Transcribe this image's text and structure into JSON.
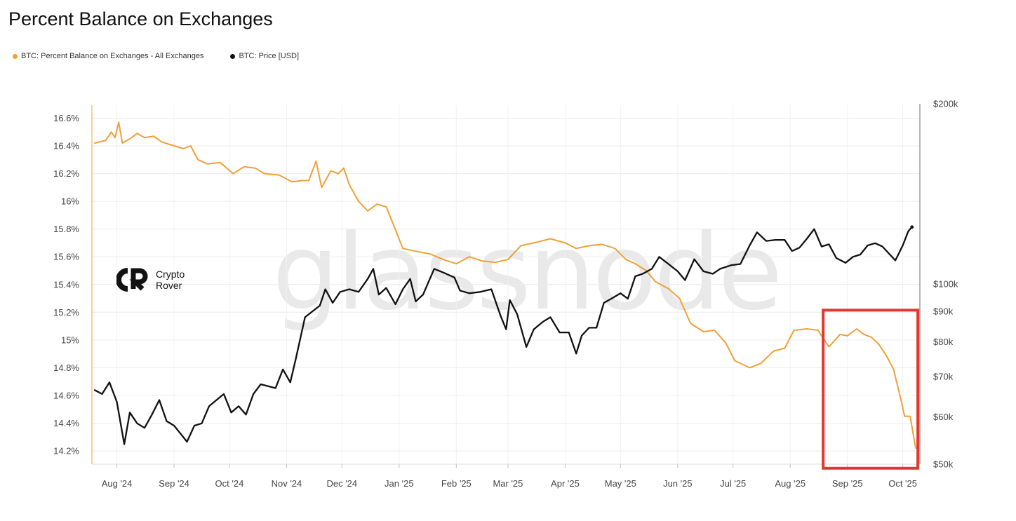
{
  "chart_data": {
    "type": "line",
    "title": "Percent Balance on Exchanges",
    "legend_position": "top-left",
    "grid": true,
    "colors": {
      "balance": "#f0a038",
      "price": "#111111",
      "highlight": "#e03a30"
    },
    "x_ticks": [
      "Aug '24",
      "Sep '24",
      "Oct '24",
      "Nov '24",
      "Dec '24",
      "Jan '25",
      "Feb '25",
      "Mar '25",
      "Apr '25",
      "May '25",
      "Jun '25",
      "Jul '25",
      "Aug '25",
      "Sep '25",
      "Oct '25"
    ],
    "y_left": {
      "ticks": [
        "16.6%",
        "16.4%",
        "16.2%",
        "16%",
        "15.8%",
        "15.6%",
        "15.4%",
        "15.2%",
        "15%",
        "14.8%",
        "14.6%",
        "14.4%",
        "14.2%"
      ],
      "range": [
        14.2,
        16.6
      ]
    },
    "y_right": {
      "ticks": [
        "$200k",
        "$100k",
        "$90k",
        "$80k",
        "$70k",
        "$60k",
        "$50k"
      ],
      "scale": "log",
      "range": [
        50000,
        200000
      ]
    },
    "highlight": {
      "x_range": [
        "2025-08-20",
        "2025-10-05"
      ],
      "y_range": [
        14.1,
        15.2
      ],
      "axis": "left"
    },
    "series": [
      {
        "name": "BTC: Percent Balance on Exchanges - All Exchanges",
        "axis": "left",
        "points": [
          [
            "2024-07-20",
            16.42
          ],
          [
            "2024-07-26",
            16.44
          ],
          [
            "2024-07-29",
            16.5
          ],
          [
            "2024-07-31",
            16.46
          ],
          [
            "2024-08-02",
            16.57
          ],
          [
            "2024-08-04",
            16.42
          ],
          [
            "2024-08-09",
            16.46
          ],
          [
            "2024-08-12",
            16.49
          ],
          [
            "2024-08-16",
            16.46
          ],
          [
            "2024-08-21",
            16.47
          ],
          [
            "2024-08-25",
            16.43
          ],
          [
            "2024-09-01",
            16.4
          ],
          [
            "2024-09-06",
            16.38
          ],
          [
            "2024-09-10",
            16.4
          ],
          [
            "2024-09-14",
            16.3
          ],
          [
            "2024-09-19",
            16.27
          ],
          [
            "2024-09-26",
            16.28
          ],
          [
            "2024-10-03",
            16.2
          ],
          [
            "2024-10-09",
            16.25
          ],
          [
            "2024-10-15",
            16.24
          ],
          [
            "2024-10-20",
            16.2
          ],
          [
            "2024-10-28",
            16.19
          ],
          [
            "2024-11-04",
            16.14
          ],
          [
            "2024-11-09",
            16.15
          ],
          [
            "2024-11-13",
            16.15
          ],
          [
            "2024-11-17",
            16.29
          ],
          [
            "2024-11-20",
            16.1
          ],
          [
            "2024-11-25",
            16.22
          ],
          [
            "2024-11-29",
            16.2
          ],
          [
            "2024-12-02",
            16.24
          ],
          [
            "2024-12-05",
            16.12
          ],
          [
            "2024-12-10",
            16.0
          ],
          [
            "2024-12-15",
            15.93
          ],
          [
            "2024-12-20",
            15.98
          ],
          [
            "2024-12-25",
            15.96
          ],
          [
            "2024-12-29",
            15.83
          ],
          [
            "2025-01-03",
            15.66
          ],
          [
            "2025-01-10",
            15.64
          ],
          [
            "2025-01-18",
            15.62
          ],
          [
            "2025-01-25",
            15.58
          ],
          [
            "2025-02-01",
            15.55
          ],
          [
            "2025-02-08",
            15.6
          ],
          [
            "2025-02-15",
            15.57
          ],
          [
            "2025-02-22",
            15.56
          ],
          [
            "2025-03-01",
            15.58
          ],
          [
            "2025-03-08",
            15.68
          ],
          [
            "2025-03-15",
            15.7
          ],
          [
            "2025-03-24",
            15.73
          ],
          [
            "2025-04-01",
            15.7
          ],
          [
            "2025-04-07",
            15.66
          ],
          [
            "2025-04-14",
            15.68
          ],
          [
            "2025-04-21",
            15.69
          ],
          [
            "2025-04-28",
            15.66
          ],
          [
            "2025-05-04",
            15.58
          ],
          [
            "2025-05-09",
            15.55
          ],
          [
            "2025-05-15",
            15.5
          ],
          [
            "2025-05-20",
            15.42
          ],
          [
            "2025-05-27",
            15.37
          ],
          [
            "2025-06-02",
            15.3
          ],
          [
            "2025-06-08",
            15.12
          ],
          [
            "2025-06-15",
            15.06
          ],
          [
            "2025-06-21",
            15.07
          ],
          [
            "2025-06-27",
            14.98
          ],
          [
            "2025-07-02",
            14.85
          ],
          [
            "2025-07-10",
            14.8
          ],
          [
            "2025-07-16",
            14.83
          ],
          [
            "2025-07-23",
            14.92
          ],
          [
            "2025-07-29",
            14.94
          ],
          [
            "2025-08-03",
            15.07
          ],
          [
            "2025-08-10",
            15.08
          ],
          [
            "2025-08-16",
            15.07
          ],
          [
            "2025-08-22",
            14.95
          ],
          [
            "2025-08-28",
            15.04
          ],
          [
            "2025-09-01",
            15.03
          ],
          [
            "2025-09-06",
            15.08
          ],
          [
            "2025-09-10",
            15.04
          ],
          [
            "2025-09-14",
            15.02
          ],
          [
            "2025-09-18",
            14.97
          ],
          [
            "2025-09-22",
            14.89
          ],
          [
            "2025-09-26",
            14.79
          ],
          [
            "2025-09-30",
            14.57
          ],
          [
            "2025-10-02",
            14.45
          ],
          [
            "2025-10-05",
            14.45
          ],
          [
            "2025-10-08",
            14.22
          ]
        ]
      },
      {
        "name": "BTC: Price [USD]",
        "axis": "right",
        "points": [
          [
            "2024-07-20",
            66500
          ],
          [
            "2024-07-24",
            65500
          ],
          [
            "2024-07-28",
            68500
          ],
          [
            "2024-08-01",
            63500
          ],
          [
            "2024-08-05",
            54000
          ],
          [
            "2024-08-08",
            61000
          ],
          [
            "2024-08-12",
            58500
          ],
          [
            "2024-08-16",
            57500
          ],
          [
            "2024-08-20",
            60500
          ],
          [
            "2024-08-24",
            64000
          ],
          [
            "2024-08-28",
            59000
          ],
          [
            "2024-09-01",
            58000
          ],
          [
            "2024-09-05",
            56000
          ],
          [
            "2024-09-08",
            54500
          ],
          [
            "2024-09-12",
            58000
          ],
          [
            "2024-09-16",
            58500
          ],
          [
            "2024-09-20",
            62500
          ],
          [
            "2024-09-24",
            64000
          ],
          [
            "2024-09-28",
            65500
          ],
          [
            "2024-10-02",
            61000
          ],
          [
            "2024-10-06",
            62500
          ],
          [
            "2024-10-10",
            60500
          ],
          [
            "2024-10-14",
            65500
          ],
          [
            "2024-10-18",
            68000
          ],
          [
            "2024-10-22",
            67500
          ],
          [
            "2024-10-26",
            67000
          ],
          [
            "2024-10-30",
            72000
          ],
          [
            "2024-11-03",
            68500
          ],
          [
            "2024-11-06",
            75000
          ],
          [
            "2024-11-11",
            88000
          ],
          [
            "2024-11-15",
            90000
          ],
          [
            "2024-11-19",
            92000
          ],
          [
            "2024-11-22",
            98000
          ],
          [
            "2024-11-26",
            93000
          ],
          [
            "2024-11-30",
            97000
          ],
          [
            "2024-12-05",
            98000
          ],
          [
            "2024-12-10",
            97000
          ],
          [
            "2024-12-15",
            102000
          ],
          [
            "2024-12-18",
            106000
          ],
          [
            "2024-12-21",
            96000
          ],
          [
            "2024-12-25",
            98500
          ],
          [
            "2024-12-30",
            92500
          ],
          [
            "2025-01-03",
            98000
          ],
          [
            "2025-01-07",
            102000
          ],
          [
            "2025-01-10",
            93500
          ],
          [
            "2025-01-14",
            96000
          ],
          [
            "2025-01-20",
            106000
          ],
          [
            "2025-01-25",
            104500
          ],
          [
            "2025-01-31",
            102500
          ],
          [
            "2025-02-03",
            97500
          ],
          [
            "2025-02-08",
            96500
          ],
          [
            "2025-02-14",
            97000
          ],
          [
            "2025-02-20",
            98000
          ],
          [
            "2025-02-25",
            88500
          ],
          [
            "2025-02-28",
            84000
          ],
          [
            "2025-03-02",
            94000
          ],
          [
            "2025-03-06",
            89000
          ],
          [
            "2025-03-11",
            78500
          ],
          [
            "2025-03-15",
            84000
          ],
          [
            "2025-03-20",
            86500
          ],
          [
            "2025-03-24",
            88000
          ],
          [
            "2025-03-29",
            83000
          ],
          [
            "2025-04-03",
            83000
          ],
          [
            "2025-04-07",
            76500
          ],
          [
            "2025-04-10",
            82000
          ],
          [
            "2025-04-14",
            84500
          ],
          [
            "2025-04-18",
            84500
          ],
          [
            "2025-04-22",
            93000
          ],
          [
            "2025-04-26",
            94500
          ],
          [
            "2025-05-01",
            96500
          ],
          [
            "2025-05-05",
            94500
          ],
          [
            "2025-05-09",
            103000
          ],
          [
            "2025-05-13",
            104000
          ],
          [
            "2025-05-18",
            106000
          ],
          [
            "2025-05-22",
            111000
          ],
          [
            "2025-05-27",
            108000
          ],
          [
            "2025-06-01",
            105000
          ],
          [
            "2025-06-05",
            101500
          ],
          [
            "2025-06-10",
            110000
          ],
          [
            "2025-06-15",
            105000
          ],
          [
            "2025-06-20",
            104000
          ],
          [
            "2025-06-24",
            106000
          ],
          [
            "2025-06-30",
            107500
          ],
          [
            "2025-07-05",
            108000
          ],
          [
            "2025-07-10",
            116000
          ],
          [
            "2025-07-14",
            122000
          ],
          [
            "2025-07-19",
            118000
          ],
          [
            "2025-07-24",
            118500
          ],
          [
            "2025-07-29",
            118500
          ],
          [
            "2025-08-02",
            113500
          ],
          [
            "2025-08-06",
            115000
          ],
          [
            "2025-08-10",
            119000
          ],
          [
            "2025-08-14",
            123500
          ],
          [
            "2025-08-18",
            115500
          ],
          [
            "2025-08-22",
            116500
          ],
          [
            "2025-08-26",
            110500
          ],
          [
            "2025-08-31",
            108500
          ],
          [
            "2025-09-04",
            111000
          ],
          [
            "2025-09-08",
            112000
          ],
          [
            "2025-09-12",
            116000
          ],
          [
            "2025-09-16",
            117000
          ],
          [
            "2025-09-20",
            115500
          ],
          [
            "2025-09-24",
            112000
          ],
          [
            "2025-09-27",
            109500
          ],
          [
            "2025-10-01",
            116000
          ],
          [
            "2025-10-04",
            122500
          ],
          [
            "2025-10-06",
            124500
          ]
        ]
      }
    ]
  },
  "legend": [
    {
      "label": "BTC: Percent Balance on Exchanges - All Exchanges",
      "color": "#f0a038"
    },
    {
      "label": "BTC: Price [USD]",
      "color": "#111111"
    }
  ],
  "watermark": "glassnode",
  "brand": {
    "name_line1": "Crypto",
    "name_line2": "Rover",
    "logo_icon": "crypto-rover-logo-icon"
  }
}
